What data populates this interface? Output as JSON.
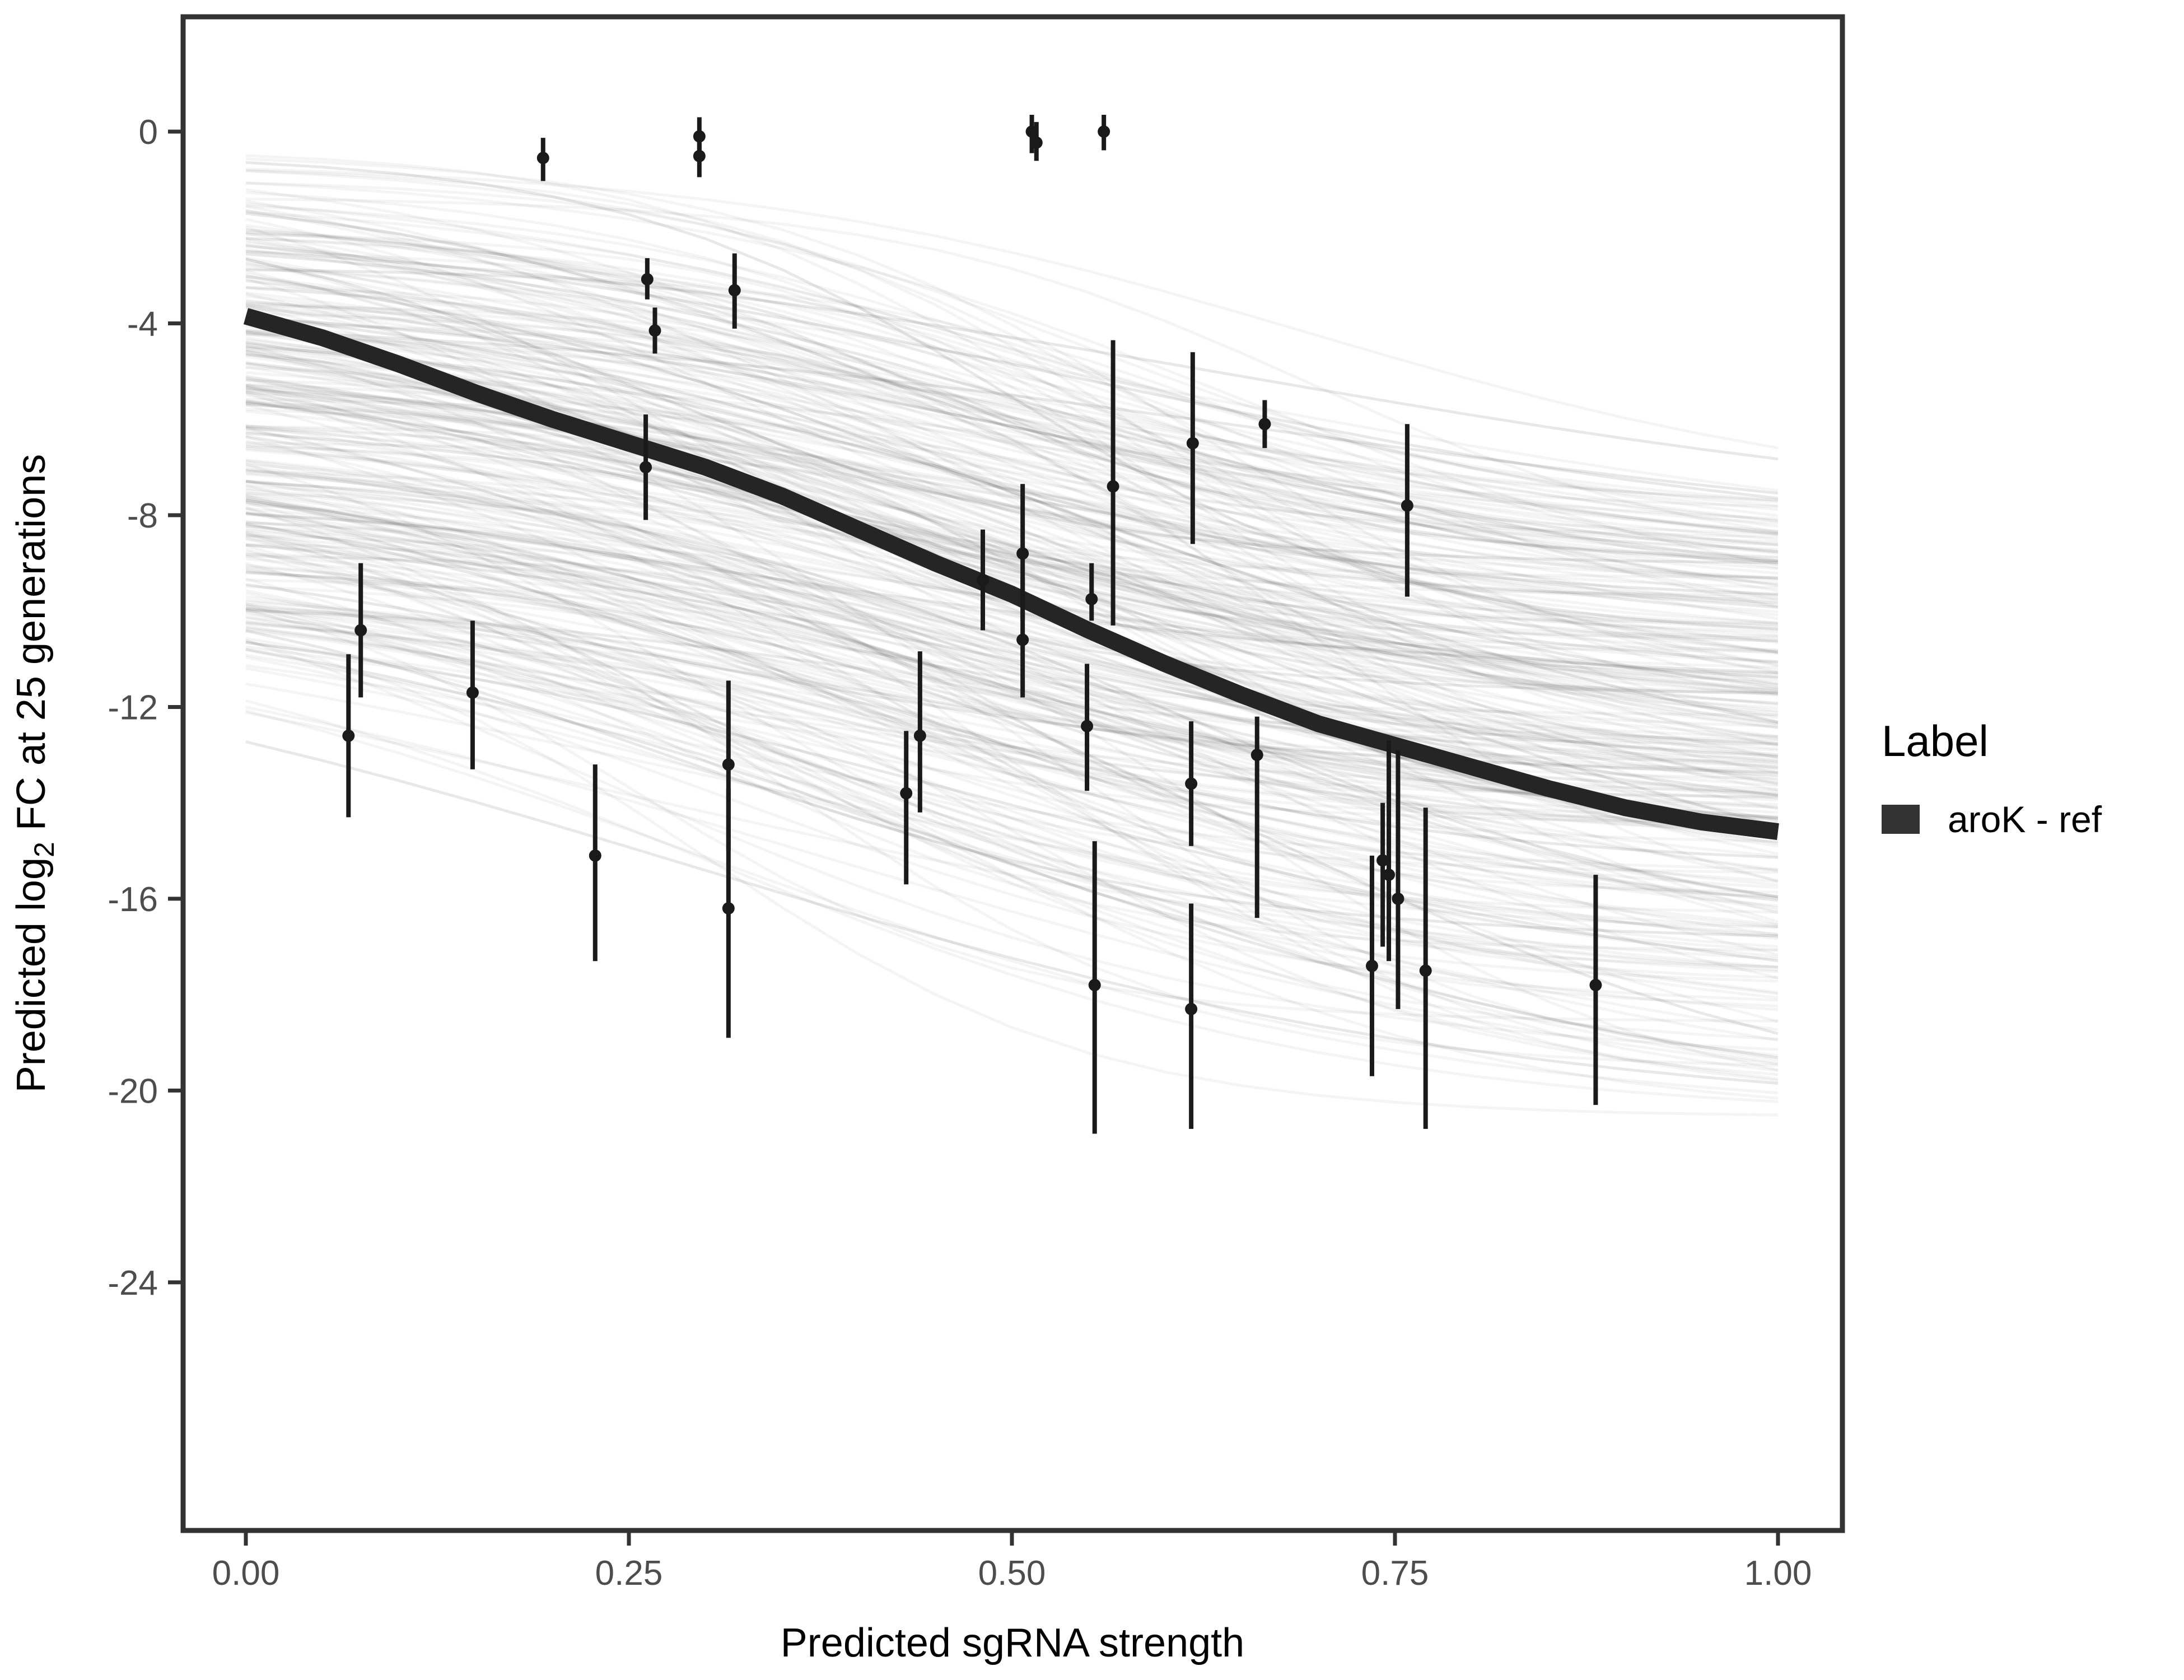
{
  "figure": {
    "background": "#ffffff",
    "panel_border_color": "#333333",
    "tick_color": "#333333",
    "tick_label_color": "#4d4d4d",
    "point_color": "#1a1a1a",
    "mean_line_color": "#252525",
    "ensemble_line_color": "#000000"
  },
  "axes": {
    "x": {
      "title": "Predicted sgRNA strength",
      "ticks": [
        0,
        0.25,
        0.5,
        0.75,
        1.0
      ],
      "tick_labels": [
        "0.00",
        "0.25",
        "0.50",
        "0.75",
        "1.00"
      ]
    },
    "y": {
      "title_parts": [
        "Predicted  log",
        "2",
        " FC at 25 generations"
      ],
      "ticks": [
        0,
        -4,
        -8,
        -12,
        -16,
        -20,
        -24
      ],
      "tick_labels": [
        "0",
        "-4",
        "-8",
        "-12",
        "-16",
        "-20",
        "-24"
      ]
    }
  },
  "legend": {
    "title": "Label",
    "items": [
      {
        "label": "aroK - ref",
        "key_color": "#333333"
      }
    ]
  },
  "chart_data": {
    "type": "scatter",
    "subtype": "pointrange_with_posterior_curves",
    "title": "",
    "xlabel": "Predicted sgRNA strength",
    "ylabel": "Predicted log2 FC at 25 generations",
    "xlim": [
      0,
      1
    ],
    "ylim": [
      -29,
      2.4
    ],
    "grid": false,
    "legend_position": "right",
    "series_label": "aroK - ref",
    "points": [
      {
        "x": 0.194,
        "y": -0.55,
        "ymax": -0.13,
        "ymin": -1.03
      },
      {
        "x": 0.296,
        "y": -0.1,
        "ymax": 0.3,
        "ymin": -0.55
      },
      {
        "x": 0.296,
        "y": -0.51,
        "ymax": -0.05,
        "ymin": -0.95
      },
      {
        "x": 0.513,
        "y": 0.0,
        "ymax": 0.35,
        "ymin": -0.45
      },
      {
        "x": 0.516,
        "y": -0.23,
        "ymax": 0.2,
        "ymin": -0.61
      },
      {
        "x": 0.56,
        "y": 0.0,
        "ymax": 0.35,
        "ymin": -0.39
      },
      {
        "x": 0.262,
        "y": -3.08,
        "ymax": -2.64,
        "ymin": -3.5
      },
      {
        "x": 0.319,
        "y": -3.31,
        "ymax": -2.54,
        "ymin": -4.11
      },
      {
        "x": 0.267,
        "y": -4.15,
        "ymax": -3.67,
        "ymin": -4.63
      },
      {
        "x": 0.261,
        "y": -7.0,
        "ymax": -5.9,
        "ymin": -8.1
      },
      {
        "x": 0.075,
        "y": -10.4,
        "ymax": -9.0,
        "ymin": -11.8
      },
      {
        "x": 0.067,
        "y": -12.6,
        "ymax": -10.9,
        "ymin": -14.3
      },
      {
        "x": 0.148,
        "y": -11.7,
        "ymax": -10.2,
        "ymin": -13.3
      },
      {
        "x": 0.228,
        "y": -15.1,
        "ymax": -13.2,
        "ymin": -17.3
      },
      {
        "x": 0.315,
        "y": -13.2,
        "ymax": -11.45,
        "ymin": -15.0
      },
      {
        "x": 0.315,
        "y": -16.2,
        "ymax": -13.7,
        "ymin": -18.9
      },
      {
        "x": 0.431,
        "y": -13.8,
        "ymax": -12.5,
        "ymin": -15.7
      },
      {
        "x": 0.44,
        "y": -12.6,
        "ymax": -10.84,
        "ymin": -14.2
      },
      {
        "x": 0.481,
        "y": -9.35,
        "ymax": -8.3,
        "ymin": -10.4
      },
      {
        "x": 0.507,
        "y": -8.8,
        "ymax": -7.35,
        "ymin": -10.2
      },
      {
        "x": 0.507,
        "y": -10.6,
        "ymax": -9.3,
        "ymin": -11.8
      },
      {
        "x": 0.552,
        "y": -9.75,
        "ymax": -9.0,
        "ymin": -10.2
      },
      {
        "x": 0.549,
        "y": -12.4,
        "ymax": -11.1,
        "ymin": -13.75
      },
      {
        "x": 0.566,
        "y": -7.4,
        "ymax": -4.35,
        "ymin": -10.3
      },
      {
        "x": 0.554,
        "y": -17.8,
        "ymax": -14.8,
        "ymin": -20.9
      },
      {
        "x": 0.618,
        "y": -6.5,
        "ymax": -4.6,
        "ymin": -8.6
      },
      {
        "x": 0.617,
        "y": -13.6,
        "ymax": -12.3,
        "ymin": -14.9
      },
      {
        "x": 0.617,
        "y": -18.3,
        "ymax": -16.1,
        "ymin": -20.8
      },
      {
        "x": 0.665,
        "y": -6.1,
        "ymax": -5.6,
        "ymin": -6.6
      },
      {
        "x": 0.66,
        "y": -13.0,
        "ymax": -12.2,
        "ymin": -16.4
      },
      {
        "x": 0.758,
        "y": -7.8,
        "ymax": -6.1,
        "ymin": -9.7
      },
      {
        "x": 0.735,
        "y": -17.4,
        "ymax": -15.1,
        "ymin": -19.7
      },
      {
        "x": 0.742,
        "y": -15.2,
        "ymax": -14.0,
        "ymin": -17.0
      },
      {
        "x": 0.746,
        "y": -15.5,
        "ymax": -12.7,
        "ymin": -17.3
      },
      {
        "x": 0.752,
        "y": -16.0,
        "ymax": -12.9,
        "ymin": -18.3
      },
      {
        "x": 0.77,
        "y": -17.5,
        "ymax": -14.1,
        "ymin": -20.8
      },
      {
        "x": 0.881,
        "y": -17.8,
        "ymax": -15.5,
        "ymin": -20.3
      }
    ],
    "mean_curve": [
      [
        0.0,
        -3.85
      ],
      [
        0.05,
        -4.3
      ],
      [
        0.1,
        -4.85
      ],
      [
        0.15,
        -5.45
      ],
      [
        0.2,
        -6.0
      ],
      [
        0.25,
        -6.5
      ],
      [
        0.3,
        -7.0
      ],
      [
        0.35,
        -7.6
      ],
      [
        0.4,
        -8.3
      ],
      [
        0.45,
        -9.0
      ],
      [
        0.5,
        -9.65
      ],
      [
        0.55,
        -10.4
      ],
      [
        0.6,
        -11.1
      ],
      [
        0.65,
        -11.75
      ],
      [
        0.7,
        -12.35
      ],
      [
        0.75,
        -12.8
      ],
      [
        0.8,
        -13.25
      ],
      [
        0.85,
        -13.7
      ],
      [
        0.9,
        -14.1
      ],
      [
        0.95,
        -14.4
      ],
      [
        1.0,
        -14.6
      ]
    ],
    "ensemble": {
      "description": "posterior draw curves (light gray spaghetti band)",
      "count": 300,
      "y_range_at_x0": [
        -0.3,
        -10.5
      ],
      "y_range_at_x1": [
        -7.8,
        -20.6
      ]
    }
  }
}
